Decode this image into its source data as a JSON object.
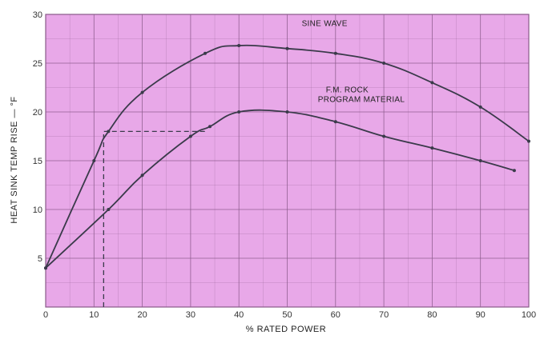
{
  "chart_data": {
    "type": "line",
    "xlabel": "% RATED POWER",
    "ylabel": "HEAT SINK TEMP RISE — °F",
    "xlim": [
      0,
      100
    ],
    "ylim": [
      0,
      30
    ],
    "x_ticks": [
      0,
      10,
      20,
      30,
      40,
      50,
      60,
      70,
      80,
      90,
      100
    ],
    "y_ticks": [
      5,
      10,
      15,
      20,
      25,
      30
    ],
    "y_tick_labels": [
      "5",
      "10",
      "15",
      "20",
      "25",
      "30"
    ],
    "grid": true,
    "series": [
      {
        "name": "SINE WAVE",
        "label_lines": [
          "SINE WAVE"
        ],
        "x": [
          0,
          10,
          13,
          20,
          33,
          40,
          50,
          60,
          70,
          80,
          90,
          100
        ],
        "y": [
          4,
          15,
          18,
          22,
          26,
          26.8,
          26.5,
          26,
          25,
          23,
          20.5,
          17
        ]
      },
      {
        "name": "F.M. ROCK PROGRAM MATERIAL",
        "label_lines": [
          "F.M. ROCK",
          "PROGRAM MATERIAL"
        ],
        "x": [
          0,
          13,
          20,
          30,
          34,
          40,
          50,
          60,
          70,
          80,
          90,
          97
        ],
        "y": [
          4,
          10,
          13.5,
          17.5,
          18.5,
          20,
          20,
          19,
          17.5,
          16.3,
          15,
          14
        ]
      }
    ],
    "reference_lines": [
      {
        "from": [
          12,
          0
        ],
        "via": [
          12,
          18
        ],
        "to": [
          33,
          18
        ]
      }
    ]
  },
  "colors": {
    "plot_background": "#e8a8e8",
    "grid": "#8a5a8a",
    "curve": "#3a3a4a",
    "axis_text": "#333333"
  }
}
